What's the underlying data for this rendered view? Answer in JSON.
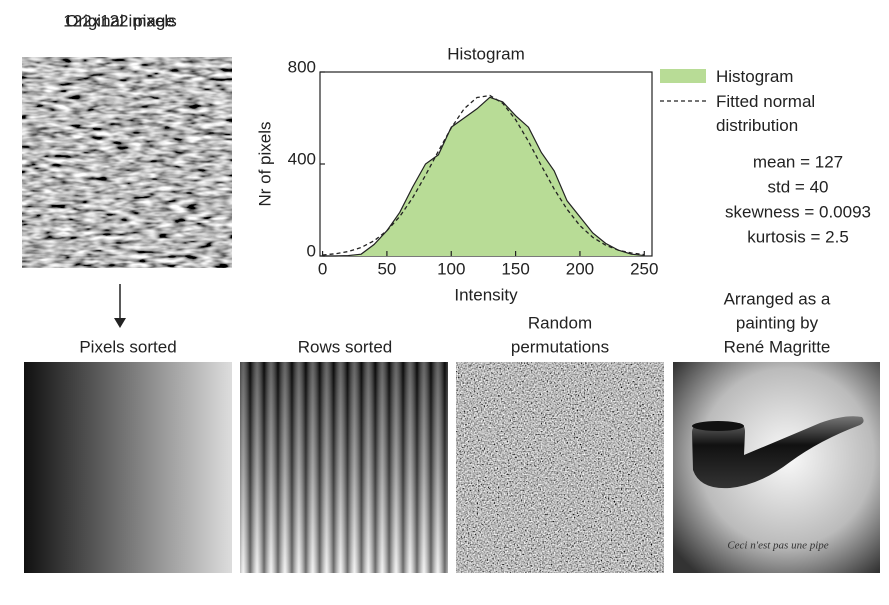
{
  "chart_data": {
    "type": "area",
    "title": "Histogram",
    "xlabel": "Intensity",
    "ylabel": "Nr of pixels",
    "x": [
      0,
      10,
      20,
      30,
      40,
      50,
      60,
      70,
      80,
      90,
      100,
      110,
      120,
      130,
      140,
      150,
      160,
      170,
      180,
      190,
      200,
      210,
      220,
      230,
      240,
      250
    ],
    "series": [
      {
        "name": "Histogram",
        "color": "#b8dc96",
        "style": "area",
        "values": [
          0,
          0,
          2,
          8,
          50,
          110,
          190,
          300,
          400,
          440,
          560,
          600,
          640,
          690,
          670,
          610,
          560,
          450,
          370,
          240,
          170,
          100,
          55,
          25,
          8,
          2
        ]
      },
      {
        "name": "Fitted normal distribution",
        "color": "#222222",
        "style": "dashed",
        "values": [
          4.5,
          9.7,
          19.5,
          37,
          66,
          110,
          172,
          253,
          351,
          456,
          557,
          640,
          689,
          698,
          664,
          593,
          498,
          393,
          291,
          203,
          132,
          81,
          47,
          25,
          13,
          6
        ]
      }
    ],
    "xlim": [
      -2,
      256
    ],
    "xticks": [
      0,
      50,
      100,
      150,
      200,
      250
    ],
    "ylim": [
      0,
      800
    ],
    "yticks": [
      0,
      400,
      800
    ],
    "annotations": [
      "mean = 127",
      "std = 40",
      "skewness = 0.0093",
      "kurtosis = 2.5"
    ]
  },
  "panels": {
    "original": [
      "Original image",
      "122x122 pixels"
    ],
    "pixels_sorted": [
      "Pixels sorted"
    ],
    "rows_sorted": [
      "Rows sorted"
    ],
    "random": [
      "Random",
      "permutations"
    ],
    "magritte": [
      "Arranged as a",
      "painting by",
      "René Magritte"
    ],
    "magritte_caption": "Ceci n'est pas une pipe"
  }
}
